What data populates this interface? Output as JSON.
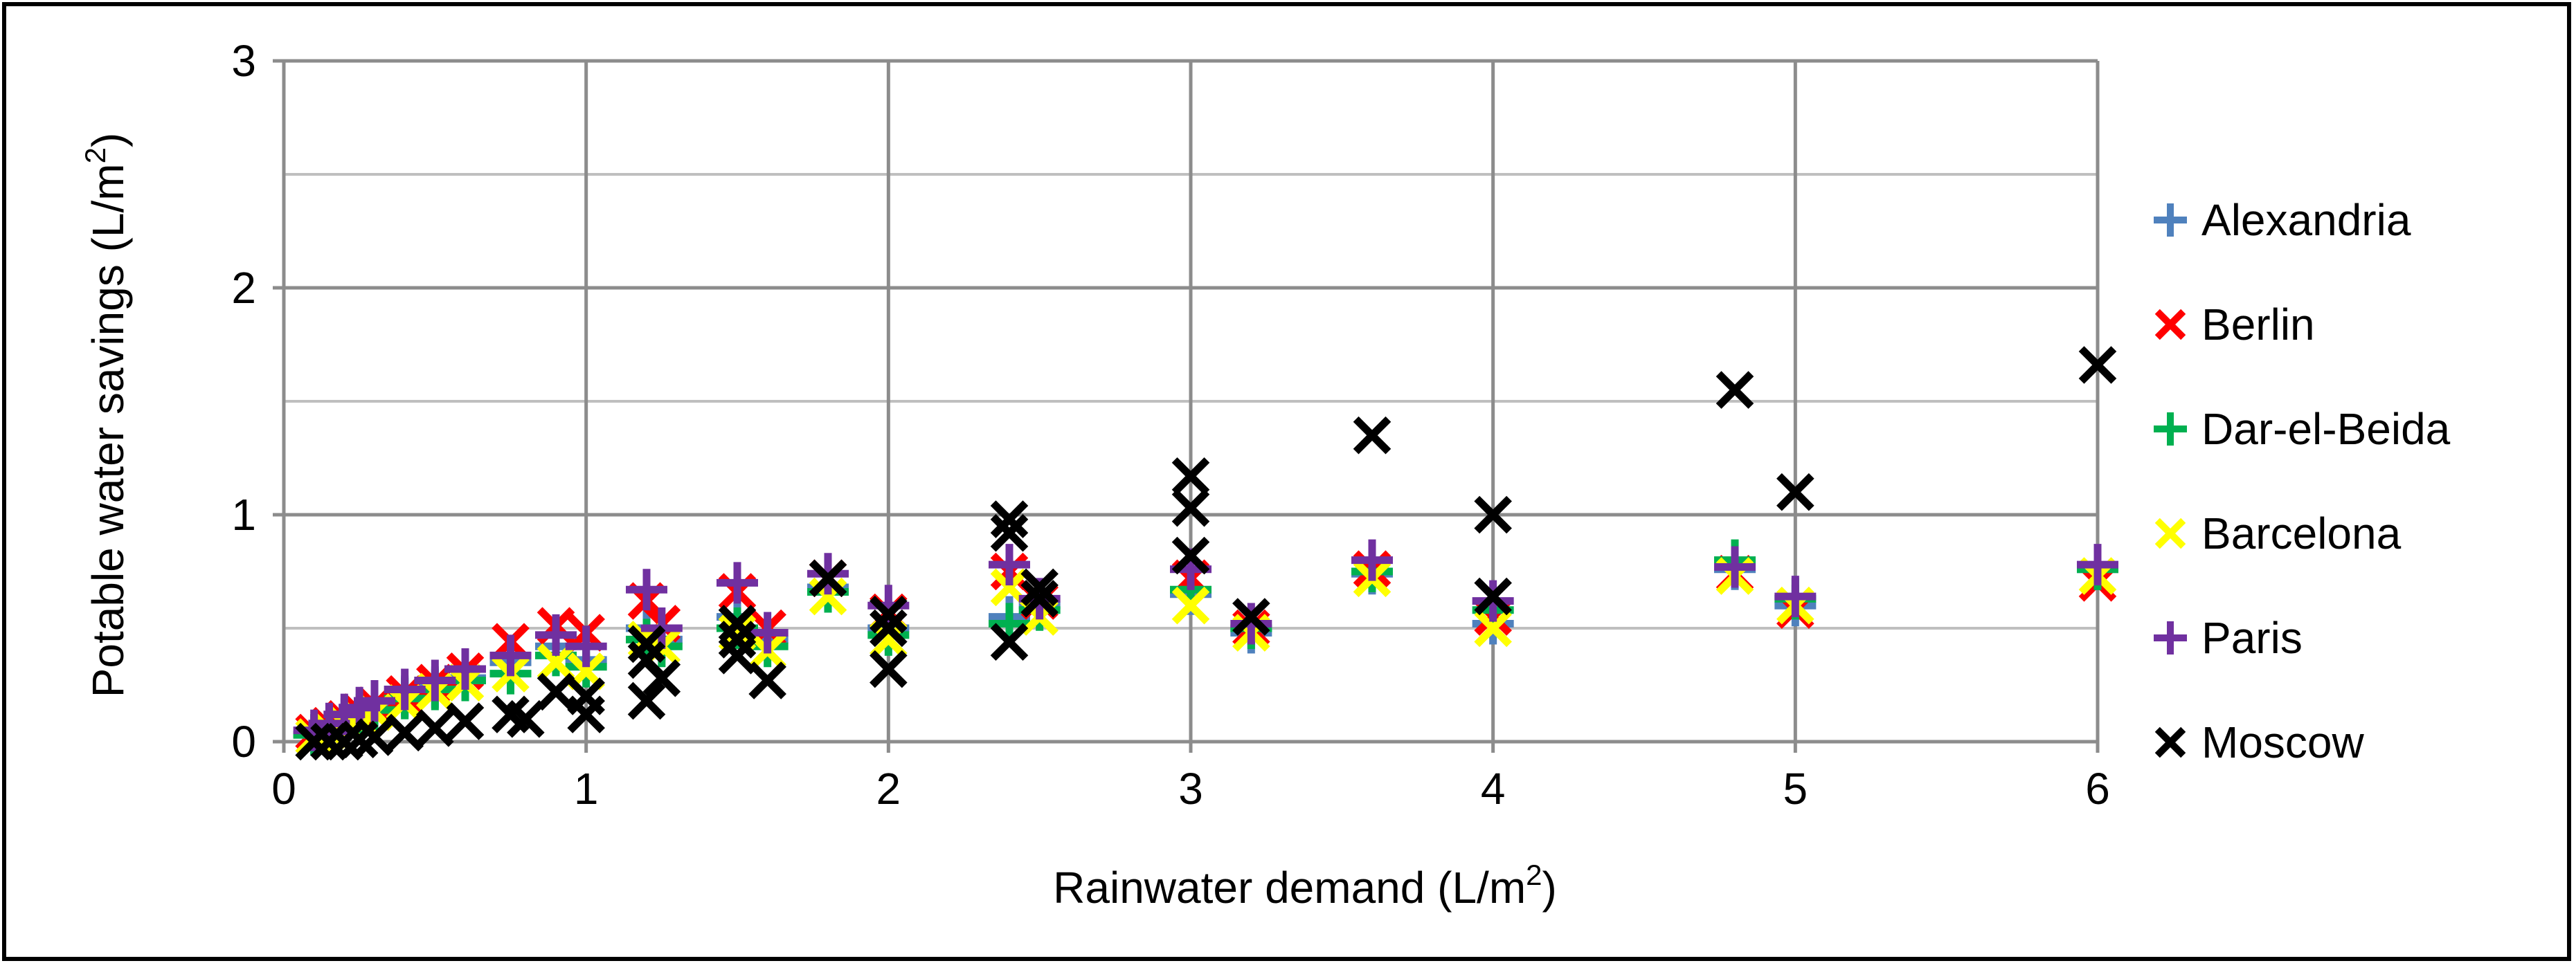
{
  "chart_data": {
    "type": "scatter",
    "title": "",
    "xlabel": "Rainwater demand (L/m",
    "xlabel_sup": "2",
    "xlabel_tail": ")",
    "ylabel": "Potable water savings (L/m",
    "ylabel_sup": "2",
    "ylabel_tail": ")",
    "xlim": [
      0,
      6
    ],
    "ylim": [
      0,
      3
    ],
    "x_ticks": [
      0,
      1,
      2,
      3,
      4,
      5,
      6
    ],
    "y_ticks": [
      0,
      1,
      2,
      3
    ],
    "x_tick_labels": [
      "0",
      "1",
      "2",
      "3",
      "4",
      "5",
      "6"
    ],
    "y_tick_labels": [
      "0",
      "1",
      "2",
      "3"
    ],
    "grid": true,
    "legend_position": "right",
    "series": [
      {
        "name": "Alexandria",
        "marker": "plus",
        "color": "#4f81bd",
        "points": [
          [
            0.1,
            0.03
          ],
          [
            0.15,
            0.06
          ],
          [
            0.2,
            0.1
          ],
          [
            0.25,
            0.12
          ],
          [
            0.3,
            0.15
          ],
          [
            0.4,
            0.2
          ],
          [
            0.5,
            0.24
          ],
          [
            0.6,
            0.28
          ],
          [
            0.75,
            0.35
          ],
          [
            0.9,
            0.42
          ],
          [
            1.0,
            0.36
          ],
          [
            1.2,
            0.5
          ],
          [
            1.25,
            0.45
          ],
          [
            1.5,
            0.55
          ],
          [
            1.6,
            0.45
          ],
          [
            1.8,
            0.68
          ],
          [
            2.0,
            0.5
          ],
          [
            2.4,
            0.55
          ],
          [
            2.5,
            0.6
          ],
          [
            3.0,
            0.65
          ],
          [
            3.2,
            0.48
          ],
          [
            3.6,
            0.74
          ],
          [
            4.0,
            0.52
          ],
          [
            4.8,
            0.76
          ],
          [
            5.0,
            0.6
          ],
          [
            6.0,
            0.76
          ]
        ]
      },
      {
        "name": "Berlin",
        "marker": "x",
        "color": "#ff0000",
        "points": [
          [
            0.1,
            0.04
          ],
          [
            0.15,
            0.07
          ],
          [
            0.2,
            0.1
          ],
          [
            0.25,
            0.13
          ],
          [
            0.3,
            0.16
          ],
          [
            0.4,
            0.21
          ],
          [
            0.5,
            0.26
          ],
          [
            0.6,
            0.31
          ],
          [
            0.75,
            0.44
          ],
          [
            0.9,
            0.51
          ],
          [
            1.0,
            0.48
          ],
          [
            1.2,
            0.62
          ],
          [
            1.25,
            0.52
          ],
          [
            1.5,
            0.66
          ],
          [
            1.6,
            0.5
          ],
          [
            1.8,
            0.72
          ],
          [
            2.0,
            0.57
          ],
          [
            2.4,
            0.75
          ],
          [
            2.5,
            0.62
          ],
          [
            3.0,
            0.72
          ],
          [
            3.2,
            0.5
          ],
          [
            3.6,
            0.76
          ],
          [
            4.0,
            0.55
          ],
          [
            4.8,
            0.74
          ],
          [
            5.0,
            0.58
          ],
          [
            6.0,
            0.7
          ]
        ]
      },
      {
        "name": "Dar-el-Beida",
        "marker": "plus",
        "color": "#00b050",
        "points": [
          [
            0.1,
            0.03
          ],
          [
            0.15,
            0.05
          ],
          [
            0.2,
            0.08
          ],
          [
            0.25,
            0.11
          ],
          [
            0.3,
            0.14
          ],
          [
            0.4,
            0.19
          ],
          [
            0.5,
            0.23
          ],
          [
            0.6,
            0.27
          ],
          [
            0.75,
            0.3
          ],
          [
            0.9,
            0.38
          ],
          [
            1.0,
            0.33
          ],
          [
            1.2,
            0.45
          ],
          [
            1.25,
            0.42
          ],
          [
            1.5,
            0.5
          ],
          [
            1.6,
            0.42
          ],
          [
            1.8,
            0.66
          ],
          [
            2.0,
            0.47
          ],
          [
            2.4,
            0.52
          ],
          [
            2.5,
            0.58
          ],
          [
            3.0,
            0.67
          ],
          [
            3.2,
            0.5
          ],
          [
            3.6,
            0.75
          ],
          [
            4.0,
            0.58
          ],
          [
            4.8,
            0.8
          ],
          [
            5.0,
            0.63
          ],
          [
            6.0,
            0.76
          ]
        ]
      },
      {
        "name": "Barcelona",
        "marker": "x",
        "color": "#ffff00",
        "points": [
          [
            0.1,
            0.02
          ],
          [
            0.15,
            0.05
          ],
          [
            0.2,
            0.08
          ],
          [
            0.25,
            0.1
          ],
          [
            0.3,
            0.13
          ],
          [
            0.4,
            0.17
          ],
          [
            0.5,
            0.22
          ],
          [
            0.6,
            0.26
          ],
          [
            0.75,
            0.3
          ],
          [
            0.9,
            0.35
          ],
          [
            1.0,
            0.31
          ],
          [
            1.2,
            0.45
          ],
          [
            1.25,
            0.42
          ],
          [
            1.5,
            0.48
          ],
          [
            1.6,
            0.4
          ],
          [
            1.8,
            0.64
          ],
          [
            2.0,
            0.45
          ],
          [
            2.4,
            0.68
          ],
          [
            2.5,
            0.55
          ],
          [
            3.0,
            0.6
          ],
          [
            3.2,
            0.48
          ],
          [
            3.6,
            0.72
          ],
          [
            4.0,
            0.5
          ],
          [
            4.8,
            0.73
          ],
          [
            5.0,
            0.6
          ],
          [
            6.0,
            0.73
          ]
        ]
      },
      {
        "name": "Paris",
        "marker": "plus",
        "color": "#7030a0",
        "points": [
          [
            0.1,
            0.05
          ],
          [
            0.15,
            0.08
          ],
          [
            0.2,
            0.12
          ],
          [
            0.25,
            0.15
          ],
          [
            0.3,
            0.18
          ],
          [
            0.4,
            0.23
          ],
          [
            0.5,
            0.27
          ],
          [
            0.6,
            0.32
          ],
          [
            0.75,
            0.38
          ],
          [
            0.9,
            0.47
          ],
          [
            1.0,
            0.42
          ],
          [
            1.2,
            0.67
          ],
          [
            1.25,
            0.5
          ],
          [
            1.5,
            0.7
          ],
          [
            1.6,
            0.48
          ],
          [
            1.8,
            0.74
          ],
          [
            2.0,
            0.6
          ],
          [
            2.4,
            0.78
          ],
          [
            2.5,
            0.63
          ],
          [
            3.0,
            0.76
          ],
          [
            3.2,
            0.52
          ],
          [
            3.6,
            0.8
          ],
          [
            4.0,
            0.62
          ],
          [
            4.8,
            0.77
          ],
          [
            5.0,
            0.64
          ],
          [
            6.0,
            0.78
          ]
        ]
      },
      {
        "name": "Moscow",
        "marker": "x",
        "color": "#000000",
        "points": [
          [
            0.1,
            0.0
          ],
          [
            0.15,
            0.0
          ],
          [
            0.2,
            0.0
          ],
          [
            0.25,
            0.01
          ],
          [
            0.3,
            0.02
          ],
          [
            0.4,
            0.04
          ],
          [
            0.5,
            0.06
          ],
          [
            0.6,
            0.09
          ],
          [
            0.75,
            0.12
          ],
          [
            0.8,
            0.1
          ],
          [
            0.9,
            0.22
          ],
          [
            1.0,
            0.12
          ],
          [
            1.0,
            0.2
          ],
          [
            1.2,
            0.18
          ],
          [
            1.2,
            0.36
          ],
          [
            1.2,
            0.43
          ],
          [
            1.25,
            0.28
          ],
          [
            1.5,
            0.38
          ],
          [
            1.5,
            0.45
          ],
          [
            1.5,
            0.52
          ],
          [
            1.6,
            0.27
          ],
          [
            1.8,
            0.72
          ],
          [
            2.0,
            0.32
          ],
          [
            2.0,
            0.5
          ],
          [
            2.0,
            0.56
          ],
          [
            2.4,
            0.44
          ],
          [
            2.4,
            0.92
          ],
          [
            2.4,
            0.98
          ],
          [
            2.5,
            0.68
          ],
          [
            2.5,
            0.63
          ],
          [
            3.0,
            0.82
          ],
          [
            3.0,
            1.03
          ],
          [
            3.0,
            1.17
          ],
          [
            3.2,
            0.55
          ],
          [
            3.6,
            1.35
          ],
          [
            4.0,
            0.64
          ],
          [
            4.0,
            1.0
          ],
          [
            4.8,
            1.55
          ],
          [
            5.0,
            1.1
          ],
          [
            6.0,
            1.66
          ]
        ]
      }
    ]
  }
}
